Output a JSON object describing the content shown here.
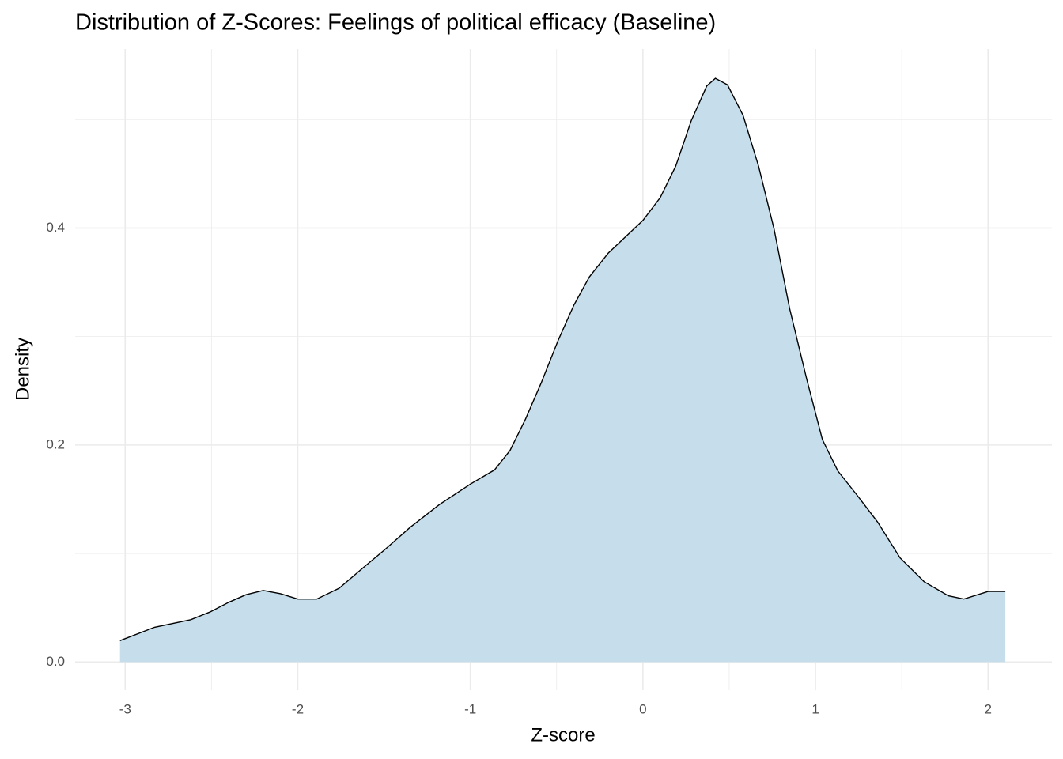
{
  "chart_data": {
    "type": "area",
    "title": "Distribution of Z-Scores: Feelings of political efficacy (Baseline)",
    "x_label": "Z-score",
    "y_label": "Density",
    "fill_color": "#c6deeb",
    "line_color": "#000000",
    "grid": true,
    "xlim": [
      -3.29,
      2.37
    ],
    "ylim": [
      -0.026,
      0.565
    ],
    "xticks": [
      -3,
      -2,
      -1,
      0,
      1,
      2
    ],
    "yticks": [
      {
        "value": 0,
        "label": "0.0"
      },
      {
        "value": 0.2,
        "label": "0.2"
      },
      {
        "value": 0.4,
        "label": "0.4"
      }
    ],
    "x_minor_grid": [
      -2.5,
      -1.5,
      -0.5,
      0.5,
      1.5
    ],
    "y_minor_grid": [
      0.1,
      0.3,
      0.5
    ],
    "x": [
      -3.03,
      -2.83,
      -2.62,
      -2.51,
      -2.4,
      -2.3,
      -2.2,
      -2.1,
      -2.0,
      -1.89,
      -1.76,
      -1.62,
      -1.5,
      -1.35,
      -1.18,
      -1.0,
      -0.86,
      -0.77,
      -0.68,
      -0.59,
      -0.49,
      -0.4,
      -0.31,
      -0.2,
      -0.08,
      0.0,
      0.1,
      0.19,
      0.28,
      0.37,
      0.42,
      0.49,
      0.58,
      0.67,
      0.76,
      0.85,
      0.95,
      1.04,
      1.13,
      1.24,
      1.36,
      1.49,
      1.63,
      1.77,
      1.86,
      2.0,
      2.1
    ],
    "values": [
      0.0197,
      0.032,
      0.039,
      0.046,
      0.055,
      0.062,
      0.066,
      0.063,
      0.058,
      0.058,
      0.068,
      0.087,
      0.103,
      0.124,
      0.145,
      0.164,
      0.177,
      0.195,
      0.224,
      0.257,
      0.297,
      0.329,
      0.355,
      0.377,
      0.395,
      0.407,
      0.428,
      0.457,
      0.499,
      0.531,
      0.538,
      0.532,
      0.504,
      0.457,
      0.399,
      0.326,
      0.26,
      0.205,
      0.176,
      0.154,
      0.129,
      0.096,
      0.074,
      0.061,
      0.058,
      0.065,
      0.065
    ]
  }
}
